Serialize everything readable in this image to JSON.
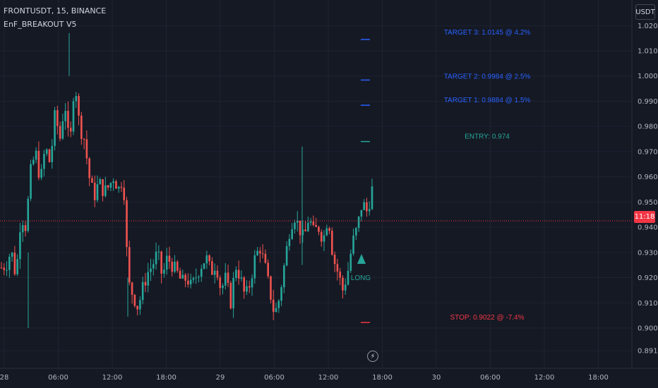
{
  "legend": {
    "symbol_line": "FRONTUSDT, 15, BINANCE",
    "indicator_name": "EnF_BREAKOUT V5"
  },
  "currency_button": "USDT",
  "current_price_time": "11:18",
  "bolt_icon": "lightning-icon",
  "colors": {
    "background": "#151924",
    "up": "#26a69a",
    "down": "#ef5350",
    "target": "#2962ff",
    "entry": "#26a69a",
    "stop": "#f23645",
    "grid": "#1f2230"
  },
  "annotations": {
    "target3": "TARGET 3: 1.0145 @ 4.2%",
    "target2": "TARGET 2: 0.9984 @ 2.5%",
    "target1": "TARGET 1: 0.9884 @ 1.5%",
    "entry": "ENTRY: 0.974",
    "stop": "STOP: 0.9022 @ -7.4%",
    "signal": "LONG"
  },
  "chart_data": {
    "type": "candlestick",
    "symbol": "FRONTUSDT",
    "interval": "15",
    "exchange": "BINANCE",
    "y_ticks": [
      "1.0200",
      "1.0100",
      "1.0000",
      "0.9900",
      "0.9800",
      "0.9700",
      "0.9600",
      "0.9500",
      "0.9400",
      "0.9300",
      "0.9200",
      "0.9100",
      "0.9000",
      "0.8910"
    ],
    "y_tick_values": [
      1.02,
      1.01,
      1.0,
      0.99,
      0.98,
      0.97,
      0.96,
      0.95,
      0.94,
      0.93,
      0.92,
      0.91,
      0.9,
      0.891
    ],
    "x_ticks": [
      "28",
      "06:00",
      "12:00",
      "18:00",
      "29",
      "06:00",
      "12:00",
      "18:00",
      "30",
      "06:00",
      "12:00",
      "18:00"
    ],
    "current_price": 0.9425,
    "levels": {
      "target3": 1.0145,
      "target2": 0.9984,
      "target1": 0.9884,
      "entry": 0.974,
      "stop": 0.9022
    },
    "close_path": [
      0.924,
      0.925,
      0.931,
      0.92,
      0.945,
      0.94,
      0.962,
      0.97,
      0.958,
      0.972,
      0.965,
      0.985,
      0.975,
      0.99,
      0.97,
      1.0,
      0.98,
      0.975,
      0.96,
      0.952,
      0.958,
      0.954,
      0.956,
      0.96,
      0.955,
      0.96,
      0.918,
      0.913,
      0.908,
      0.916,
      0.922,
      0.925,
      0.93,
      0.92,
      0.928,
      0.925,
      0.922,
      0.918,
      0.92,
      0.916,
      0.921,
      0.925,
      0.928,
      0.922,
      0.926,
      0.915,
      0.92,
      0.91,
      0.925,
      0.92,
      0.912,
      0.918,
      0.928,
      0.932,
      0.925,
      0.915,
      0.905,
      0.912,
      0.925,
      0.938,
      0.945,
      0.94,
      0.935,
      0.944,
      0.938,
      0.94,
      0.935,
      0.945,
      0.928,
      0.922,
      0.915,
      0.922,
      0.934,
      0.94,
      0.95,
      0.946,
      0.955
    ],
    "time_range": [
      "28",
      "30 18:00"
    ]
  }
}
